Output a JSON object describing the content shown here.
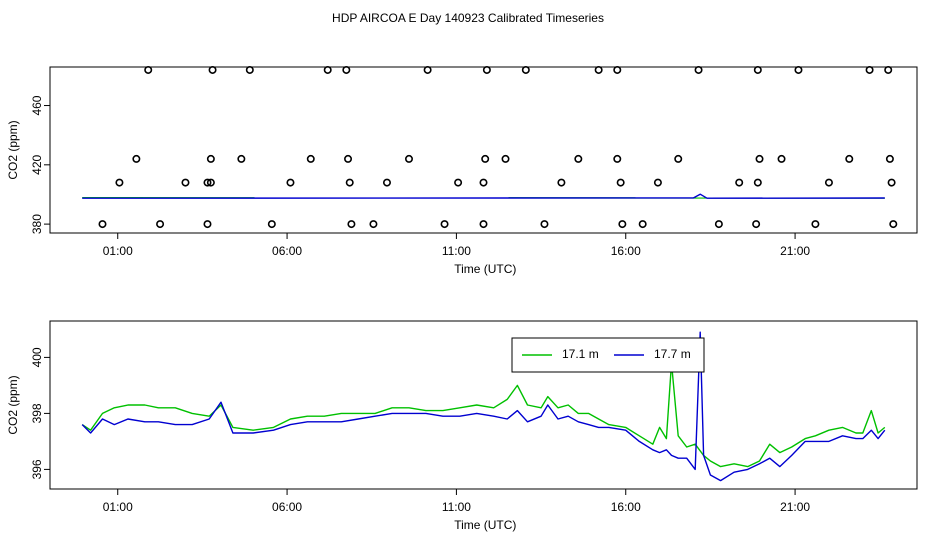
{
  "title": "HDP AIRCOA E  Day 140923  Calibrated Timeseries",
  "chart_data": [
    {
      "type": "scatter+line",
      "xlabel": "Time (UTC)",
      "ylabel": "CO2 (ppm)",
      "xticks": [
        {
          "h": 1,
          "label": "01:00"
        },
        {
          "h": 6,
          "label": "06:00"
        },
        {
          "h": 11,
          "label": "11:00"
        },
        {
          "h": 16,
          "label": "16:00"
        },
        {
          "h": 21,
          "label": "21:00"
        }
      ],
      "yticks": [
        380,
        420,
        460
      ],
      "xlim": [
        -1.0,
        24.6
      ],
      "ylim": [
        374,
        486
      ],
      "calibration_points": [
        [
          1.9,
          484
        ],
        [
          3.8,
          484
        ],
        [
          4.9,
          484
        ],
        [
          7.2,
          484
        ],
        [
          7.75,
          484
        ],
        [
          10.15,
          484
        ],
        [
          11.9,
          484
        ],
        [
          13.05,
          484
        ],
        [
          15.2,
          484
        ],
        [
          15.75,
          484
        ],
        [
          18.15,
          484
        ],
        [
          19.9,
          484
        ],
        [
          21.1,
          484
        ],
        [
          23.2,
          484
        ],
        [
          23.75,
          484
        ],
        [
          0.55,
          380
        ],
        [
          2.25,
          380
        ],
        [
          3.65,
          380
        ],
        [
          5.55,
          380
        ],
        [
          7.9,
          380
        ],
        [
          8.55,
          380
        ],
        [
          10.65,
          380
        ],
        [
          11.8,
          380
        ],
        [
          13.6,
          380
        ],
        [
          15.9,
          380
        ],
        [
          16.5,
          380
        ],
        [
          18.75,
          380
        ],
        [
          19.85,
          380
        ],
        [
          21.6,
          380
        ],
        [
          23.9,
          380
        ],
        [
          1.55,
          424
        ],
        [
          3.75,
          424
        ],
        [
          4.65,
          424
        ],
        [
          6.7,
          424
        ],
        [
          7.8,
          424
        ],
        [
          9.6,
          424
        ],
        [
          11.85,
          424
        ],
        [
          12.45,
          424
        ],
        [
          14.6,
          424
        ],
        [
          15.75,
          424
        ],
        [
          17.55,
          424
        ],
        [
          19.95,
          424
        ],
        [
          20.6,
          424
        ],
        [
          22.6,
          424
        ],
        [
          23.8,
          424
        ],
        [
          1.05,
          408
        ],
        [
          3.0,
          408
        ],
        [
          3.65,
          408
        ],
        [
          3.75,
          408
        ],
        [
          6.1,
          408
        ],
        [
          7.85,
          408
        ],
        [
          8.95,
          408
        ],
        [
          11.05,
          408
        ],
        [
          11.8,
          408
        ],
        [
          14.1,
          408
        ],
        [
          15.85,
          408
        ],
        [
          16.95,
          408
        ],
        [
          19.35,
          408
        ],
        [
          19.9,
          408
        ],
        [
          22.0,
          408
        ],
        [
          23.85,
          408
        ]
      ],
      "series": [
        {
          "name": "17.1 m",
          "color": "#00c000",
          "values": [
            [
              -0.05,
              397.8
            ],
            [
              23.65,
              397.6
            ]
          ]
        },
        {
          "name": "17.7 m",
          "color": "#0000d0",
          "values": [
            [
              -0.05,
              397.5
            ],
            [
              18.0,
              397.7
            ],
            [
              18.2,
              400.2
            ],
            [
              18.4,
              397.5
            ],
            [
              23.65,
              397.6
            ]
          ]
        }
      ]
    },
    {
      "type": "line",
      "xlabel": "Time (UTC)",
      "ylabel": "CO2 (ppm)",
      "xticks": [
        {
          "h": 1,
          "label": "01:00"
        },
        {
          "h": 6,
          "label": "06:00"
        },
        {
          "h": 11,
          "label": "11:00"
        },
        {
          "h": 16,
          "label": "16:00"
        },
        {
          "h": 21,
          "label": "21:00"
        }
      ],
      "yticks": [
        396,
        398,
        400
      ],
      "xlim": [
        -1.0,
        24.6
      ],
      "ylim": [
        395.3,
        401.3
      ],
      "legend": "top-center",
      "series": [
        {
          "name": "17.1 m",
          "color": "#00c000",
          "values": [
            [
              -0.05,
              397.6
            ],
            [
              0.2,
              397.4
            ],
            [
              0.55,
              398.0
            ],
            [
              0.9,
              398.2
            ],
            [
              1.3,
              398.3
            ],
            [
              1.8,
              398.3
            ],
            [
              2.2,
              398.2
            ],
            [
              2.7,
              398.2
            ],
            [
              3.2,
              398.0
            ],
            [
              3.7,
              397.9
            ],
            [
              4.05,
              398.3
            ],
            [
              4.4,
              397.5
            ],
            [
              5.0,
              397.4
            ],
            [
              5.6,
              397.5
            ],
            [
              6.1,
              397.8
            ],
            [
              6.6,
              397.9
            ],
            [
              7.1,
              397.9
            ],
            [
              7.6,
              398.0
            ],
            [
              8.1,
              398.0
            ],
            [
              8.6,
              398.0
            ],
            [
              9.1,
              398.2
            ],
            [
              9.6,
              398.2
            ],
            [
              10.1,
              398.1
            ],
            [
              10.6,
              398.1
            ],
            [
              11.1,
              398.2
            ],
            [
              11.6,
              398.3
            ],
            [
              12.1,
              398.2
            ],
            [
              12.5,
              398.5
            ],
            [
              12.8,
              399.0
            ],
            [
              13.1,
              398.3
            ],
            [
              13.5,
              398.2
            ],
            [
              13.7,
              398.6
            ],
            [
              14.0,
              398.2
            ],
            [
              14.3,
              398.3
            ],
            [
              14.6,
              398.0
            ],
            [
              14.9,
              398.0
            ],
            [
              15.2,
              397.8
            ],
            [
              15.5,
              397.6
            ],
            [
              16.0,
              397.5
            ],
            [
              16.4,
              397.2
            ],
            [
              16.8,
              396.9
            ],
            [
              17.0,
              397.5
            ],
            [
              17.2,
              397.1
            ],
            [
              17.35,
              399.8
            ],
            [
              17.55,
              397.2
            ],
            [
              17.8,
              396.8
            ],
            [
              18.05,
              396.9
            ],
            [
              18.3,
              396.5
            ],
            [
              18.5,
              396.3
            ],
            [
              18.8,
              396.1
            ],
            [
              19.2,
              396.2
            ],
            [
              19.6,
              396.1
            ],
            [
              19.95,
              396.3
            ],
            [
              20.25,
              396.9
            ],
            [
              20.55,
              396.6
            ],
            [
              20.9,
              396.8
            ],
            [
              21.3,
              397.1
            ],
            [
              21.6,
              397.2
            ],
            [
              22.0,
              397.4
            ],
            [
              22.4,
              397.5
            ],
            [
              22.8,
              397.3
            ],
            [
              23.0,
              397.3
            ],
            [
              23.25,
              398.1
            ],
            [
              23.45,
              397.3
            ],
            [
              23.65,
              397.5
            ]
          ]
        },
        {
          "name": "17.7 m",
          "color": "#0000d0",
          "values": [
            [
              -0.05,
              397.6
            ],
            [
              0.2,
              397.3
            ],
            [
              0.55,
              397.8
            ],
            [
              0.9,
              397.6
            ],
            [
              1.3,
              397.8
            ],
            [
              1.8,
              397.7
            ],
            [
              2.2,
              397.7
            ],
            [
              2.7,
              397.6
            ],
            [
              3.2,
              397.6
            ],
            [
              3.7,
              397.8
            ],
            [
              4.05,
              398.4
            ],
            [
              4.4,
              397.3
            ],
            [
              5.0,
              397.3
            ],
            [
              5.6,
              397.4
            ],
            [
              6.1,
              397.6
            ],
            [
              6.6,
              397.7
            ],
            [
              7.1,
              397.7
            ],
            [
              7.6,
              397.7
            ],
            [
              8.1,
              397.8
            ],
            [
              8.6,
              397.9
            ],
            [
              9.1,
              398.0
            ],
            [
              9.6,
              398.0
            ],
            [
              10.1,
              398.0
            ],
            [
              10.6,
              397.9
            ],
            [
              11.1,
              397.9
            ],
            [
              11.6,
              398.0
            ],
            [
              12.1,
              397.9
            ],
            [
              12.5,
              397.8
            ],
            [
              12.8,
              398.1
            ],
            [
              13.1,
              397.7
            ],
            [
              13.5,
              397.9
            ],
            [
              13.7,
              398.3
            ],
            [
              14.0,
              397.8
            ],
            [
              14.3,
              397.9
            ],
            [
              14.6,
              397.7
            ],
            [
              14.9,
              397.6
            ],
            [
              15.2,
              397.5
            ],
            [
              15.5,
              397.5
            ],
            [
              16.0,
              397.4
            ],
            [
              16.4,
              397.0
            ],
            [
              16.8,
              396.7
            ],
            [
              17.0,
              396.6
            ],
            [
              17.2,
              396.7
            ],
            [
              17.35,
              396.5
            ],
            [
              17.55,
              396.4
            ],
            [
              17.8,
              396.4
            ],
            [
              18.05,
              396.0
            ],
            [
              18.2,
              400.9
            ],
            [
              18.3,
              396.5
            ],
            [
              18.5,
              395.8
            ],
            [
              18.8,
              395.6
            ],
            [
              19.2,
              395.9
            ],
            [
              19.6,
              396.0
            ],
            [
              19.95,
              396.2
            ],
            [
              20.25,
              396.4
            ],
            [
              20.55,
              396.1
            ],
            [
              20.9,
              396.5
            ],
            [
              21.3,
              397.0
            ],
            [
              21.6,
              397.0
            ],
            [
              22.0,
              397.0
            ],
            [
              22.4,
              397.2
            ],
            [
              22.8,
              397.1
            ],
            [
              23.0,
              397.1
            ],
            [
              23.25,
              397.4
            ],
            [
              23.45,
              397.1
            ],
            [
              23.65,
              397.4
            ]
          ]
        }
      ]
    }
  ]
}
